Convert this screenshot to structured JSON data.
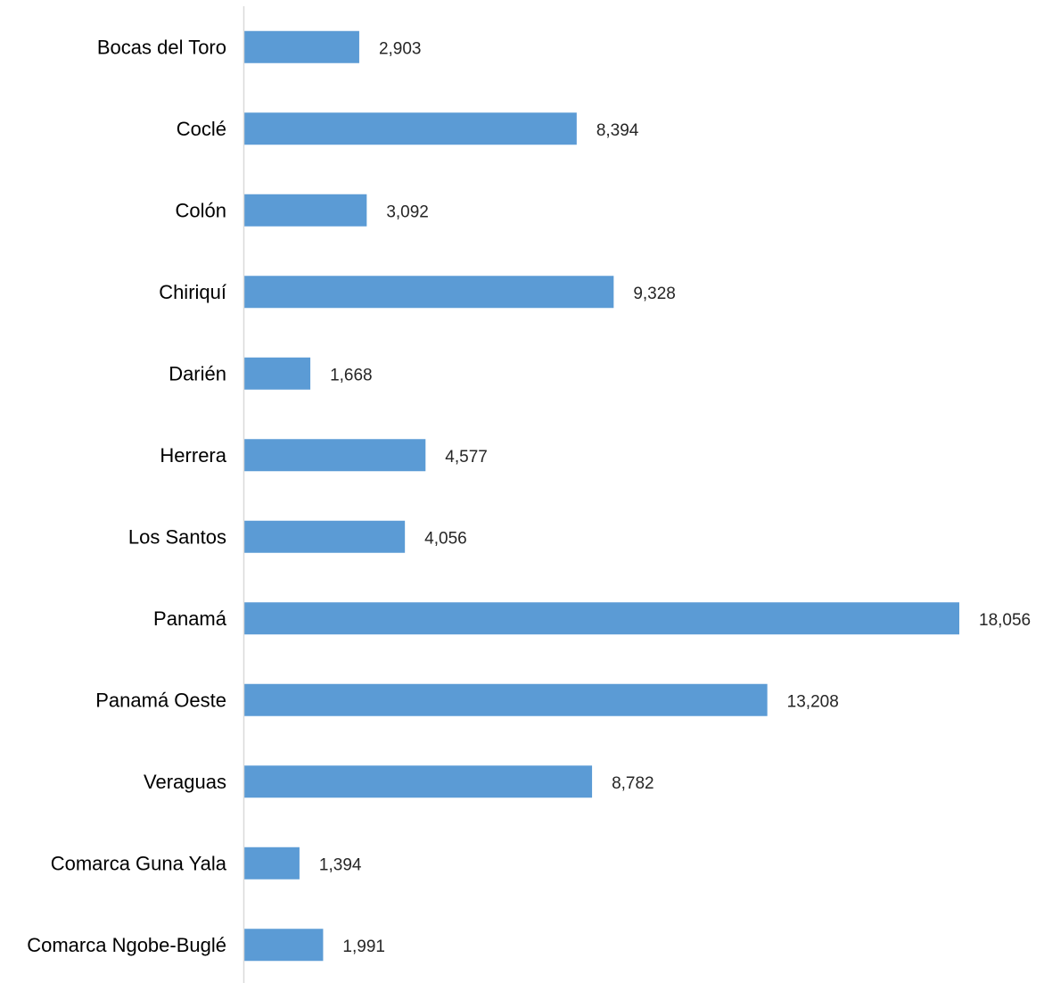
{
  "chart_data": {
    "type": "bar",
    "orientation": "horizontal",
    "categories": [
      "Bocas del Toro",
      "Coclé",
      "Colón",
      "Chiriquí",
      "Darién",
      "Herrera",
      "Los Santos",
      "Panamá",
      "Panamá Oeste",
      "Veraguas",
      "Comarca Guna Yala",
      "Comarca Ngobe-Buglé"
    ],
    "values": [
      2903,
      8394,
      3092,
      9328,
      1668,
      4577,
      4056,
      18056,
      13208,
      8782,
      1394,
      1991
    ],
    "value_labels": [
      "2,903",
      "8,394",
      "3,092",
      "9,328",
      "1,668",
      "4,577",
      "4,056",
      "18,056",
      "13,208",
      "8,782",
      "1,394",
      "1,991"
    ],
    "title": "",
    "xlabel": "",
    "ylabel": "",
    "xlim": [
      0,
      18056
    ],
    "grid": false,
    "legend": "none",
    "bar_color": "#5b9bd5",
    "axis_color": "#d9d9d9"
  }
}
